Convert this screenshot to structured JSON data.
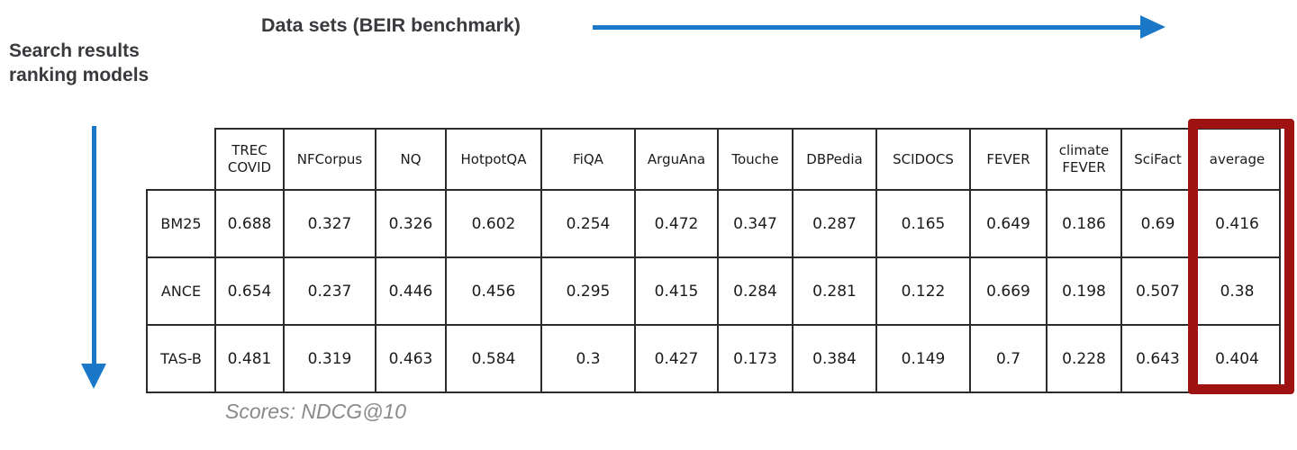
{
  "annotations": {
    "datasets_axis_label": "Data sets (BEIR benchmark)",
    "models_axis_label_line1": "Search results",
    "models_axis_label_line2": "ranking models",
    "caption": "Scores: NDCG@10"
  },
  "colors": {
    "arrow_blue": "#1b78c8",
    "highlight_red": "#9e1212",
    "hatch_red": "#e14641",
    "hatch_green": "#50aa5f",
    "table_ink": "#2b2b2b",
    "label_text": "#3a3a3e",
    "caption_gray": "#8a8a8a"
  },
  "table": {
    "columns": [
      "TREC COVID",
      "NFCorpus",
      "NQ",
      "HotpotQA",
      "FiQA",
      "ArguAna",
      "Touche",
      "DBPedia",
      "SCIDOCS",
      "FEVER",
      "climate FEVER",
      "SciFact",
      "average"
    ],
    "highlighted_column": "average",
    "rows": [
      {
        "model": "BM25",
        "cells": [
          {
            "v": "0.688",
            "tint": "none"
          },
          {
            "v": "0.327",
            "tint": "none"
          },
          {
            "v": "0.326",
            "tint": "none"
          },
          {
            "v": "0.602",
            "tint": "none"
          },
          {
            "v": "0.254",
            "tint": "none"
          },
          {
            "v": "0.472",
            "tint": "none"
          },
          {
            "v": "0.347",
            "tint": "none"
          },
          {
            "v": "0.287",
            "tint": "none"
          },
          {
            "v": "0.165",
            "tint": "none"
          },
          {
            "v": "0.649",
            "tint": "none"
          },
          {
            "v": "0.186",
            "tint": "none"
          },
          {
            "v": "0.69",
            "tint": "none"
          },
          {
            "v": "0.416",
            "tint": "none"
          }
        ]
      },
      {
        "model": "ANCE",
        "cells": [
          {
            "v": "0.654",
            "tint": "red1"
          },
          {
            "v": "0.237",
            "tint": "red2"
          },
          {
            "v": "0.446",
            "tint": "green2"
          },
          {
            "v": "0.456",
            "tint": "red2"
          },
          {
            "v": "0.295",
            "tint": "green2"
          },
          {
            "v": "0.415",
            "tint": "red1"
          },
          {
            "v": "0.284",
            "tint": "red1"
          },
          {
            "v": "0.281",
            "tint": "red1"
          },
          {
            "v": "0.122",
            "tint": "red1"
          },
          {
            "v": "0.669",
            "tint": "green1"
          },
          {
            "v": "0.198",
            "tint": "green1"
          },
          {
            "v": "0.507",
            "tint": "red2"
          },
          {
            "v": "0.38",
            "tint": "red1"
          }
        ]
      },
      {
        "model": "TAS-B",
        "cells": [
          {
            "v": "0.481",
            "tint": "red2"
          },
          {
            "v": "0.319",
            "tint": "red1"
          },
          {
            "v": "0.463",
            "tint": "green2"
          },
          {
            "v": "0.584",
            "tint": "red1"
          },
          {
            "v": "0.3",
            "tint": "green2"
          },
          {
            "v": "0.427",
            "tint": "red1"
          },
          {
            "v": "0.173",
            "tint": "red1"
          },
          {
            "v": "0.384",
            "tint": "green2"
          },
          {
            "v": "0.149",
            "tint": "red1"
          },
          {
            "v": "0.7",
            "tint": "green1"
          },
          {
            "v": "0.228",
            "tint": "green2"
          },
          {
            "v": "0.643",
            "tint": "red1"
          },
          {
            "v": "0.404",
            "tint": "red1"
          }
        ]
      }
    ]
  },
  "chart_data": {
    "type": "table",
    "title": "Data sets (BEIR benchmark)",
    "row_axis_label": "Search results ranking models",
    "caption": "Scores: NDCG@10",
    "metric": "NDCG@10",
    "categories": [
      "TREC COVID",
      "NFCorpus",
      "NQ",
      "HotpotQA",
      "FiQA",
      "ArguAna",
      "Touche",
      "DBPedia",
      "SCIDOCS",
      "FEVER",
      "climate FEVER",
      "SciFact",
      "average"
    ],
    "series": [
      {
        "name": "BM25",
        "values": [
          0.688,
          0.327,
          0.326,
          0.602,
          0.254,
          0.472,
          0.347,
          0.287,
          0.165,
          0.649,
          0.186,
          0.69,
          0.416
        ]
      },
      {
        "name": "ANCE",
        "values": [
          0.654,
          0.237,
          0.446,
          0.456,
          0.295,
          0.415,
          0.284,
          0.281,
          0.122,
          0.669,
          0.198,
          0.507,
          0.38
        ]
      },
      {
        "name": "TAS-B",
        "values": [
          0.481,
          0.319,
          0.463,
          0.584,
          0.3,
          0.427,
          0.173,
          0.384,
          0.149,
          0.7,
          0.228,
          0.643,
          0.404
        ]
      }
    ],
    "highlighted_column": "average"
  }
}
